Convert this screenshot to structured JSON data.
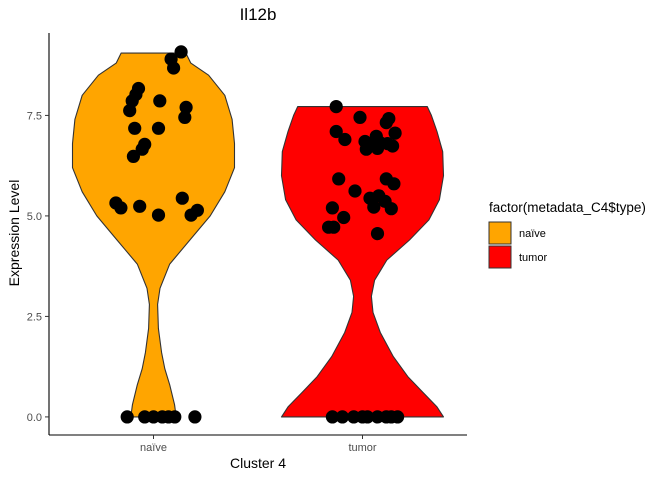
{
  "chart_data": {
    "type": "violin",
    "title": "Il12b",
    "xlabel": "Cluster 4",
    "ylabel": "Expression Level",
    "categories": [
      "naïve",
      "tumor"
    ],
    "y_ticks": [
      "0.0",
      "2.5",
      "5.0",
      "7.5"
    ],
    "y_tick_values": [
      0,
      2.5,
      5,
      7.5
    ],
    "ylim": [
      -0.45,
      9.55
    ],
    "legend": {
      "title": "factor(metadata_C4$type)",
      "entries": [
        "naïve",
        "tumor"
      ],
      "placement": "right"
    },
    "colors": {
      "naive": "#FFA500",
      "tumor": "#FF0000",
      "point": "#000000",
      "outline": "#333333"
    },
    "series": [
      {
        "group": "naïve",
        "violin_max": 9.05,
        "profile": [
          [
            0,
            0.28
          ],
          [
            0.3,
            0.26
          ],
          [
            0.8,
            0.2
          ],
          [
            1.2,
            0.14
          ],
          [
            1.6,
            0.1
          ],
          [
            2.2,
            0.06
          ],
          [
            2.8,
            0.05
          ],
          [
            3.2,
            0.08
          ],
          [
            3.8,
            0.2
          ],
          [
            4.4,
            0.45
          ],
          [
            5.0,
            0.7
          ],
          [
            5.6,
            0.88
          ],
          [
            6.2,
            1.0
          ],
          [
            6.8,
            1.0
          ],
          [
            7.4,
            0.97
          ],
          [
            8.0,
            0.88
          ],
          [
            8.5,
            0.68
          ],
          [
            8.8,
            0.46
          ],
          [
            9.05,
            0.4
          ]
        ],
        "points": [
          [
            0.0,
            -0.21
          ],
          [
            0.0,
            -0.07
          ],
          [
            0.0,
            0.0
          ],
          [
            0.0,
            0.07
          ],
          [
            0.0,
            0.12
          ],
          [
            0.0,
            0.17
          ],
          [
            0.0,
            0.33
          ],
          [
            5.32,
            -0.3
          ],
          [
            5.2,
            -0.26
          ],
          [
            5.24,
            -0.11
          ],
          [
            5.02,
            0.04
          ],
          [
            5.02,
            0.3
          ],
          [
            5.14,
            0.35
          ],
          [
            5.44,
            0.23
          ],
          [
            6.48,
            -0.16
          ],
          [
            6.66,
            -0.09
          ],
          [
            6.78,
            -0.07
          ],
          [
            7.18,
            -0.15
          ],
          [
            7.18,
            0.04
          ],
          [
            7.62,
            -0.19
          ],
          [
            7.86,
            -0.17
          ],
          [
            8.02,
            -0.14
          ],
          [
            8.17,
            -0.12
          ],
          [
            7.86,
            0.05
          ],
          [
            7.7,
            0.26
          ],
          [
            7.45,
            0.25
          ],
          [
            8.68,
            0.16
          ],
          [
            8.9,
            0.14
          ],
          [
            9.08,
            0.22
          ]
        ]
      },
      {
        "group": "tumor",
        "violin_max": 7.72,
        "profile": [
          [
            0,
            1.0
          ],
          [
            0.25,
            0.92
          ],
          [
            0.6,
            0.75
          ],
          [
            1.0,
            0.56
          ],
          [
            1.5,
            0.38
          ],
          [
            2.1,
            0.22
          ],
          [
            2.6,
            0.13
          ],
          [
            3.0,
            0.11
          ],
          [
            3.4,
            0.15
          ],
          [
            3.9,
            0.3
          ],
          [
            4.4,
            0.58
          ],
          [
            4.9,
            0.82
          ],
          [
            5.4,
            0.95
          ],
          [
            6.0,
            1.0
          ],
          [
            6.6,
            0.99
          ],
          [
            7.1,
            0.92
          ],
          [
            7.5,
            0.85
          ],
          [
            7.72,
            0.8
          ]
        ],
        "points": [
          [
            0.0,
            -0.24
          ],
          [
            0.0,
            -0.16
          ],
          [
            0.0,
            -0.07
          ],
          [
            0.0,
            0.0
          ],
          [
            0.0,
            0.04
          ],
          [
            0.0,
            0.12
          ],
          [
            0.0,
            0.19
          ],
          [
            0.0,
            0.23
          ],
          [
            0.0,
            0.28
          ],
          [
            7.72,
            -0.21
          ],
          [
            7.45,
            -0.02
          ],
          [
            7.32,
            0.19
          ],
          [
            7.42,
            0.21
          ],
          [
            7.1,
            -0.21
          ],
          [
            6.98,
            0.11
          ],
          [
            7.06,
            0.26
          ],
          [
            6.9,
            -0.14
          ],
          [
            6.85,
            0.02
          ],
          [
            6.82,
            0.14
          ],
          [
            6.66,
            0.03
          ],
          [
            6.76,
            0.09
          ],
          [
            6.68,
            0.12
          ],
          [
            6.74,
            0.24
          ],
          [
            6.8,
            0.2
          ],
          [
            5.92,
            0.19
          ],
          [
            5.8,
            0.25
          ],
          [
            5.92,
            -0.19
          ],
          [
            5.62,
            -0.06
          ],
          [
            5.2,
            -0.24
          ],
          [
            4.96,
            -0.15
          ],
          [
            4.72,
            -0.27
          ],
          [
            4.72,
            -0.23
          ],
          [
            5.44,
            0.06
          ],
          [
            5.5,
            0.13
          ],
          [
            5.36,
            0.18
          ],
          [
            5.22,
            0.09
          ],
          [
            5.18,
            0.23
          ],
          [
            4.56,
            0.12
          ]
        ]
      }
    ]
  }
}
